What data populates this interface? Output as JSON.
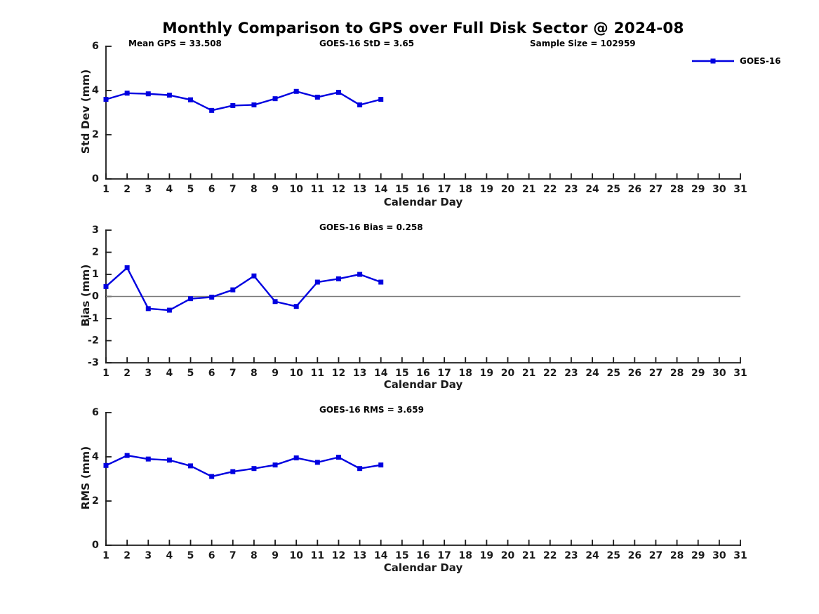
{
  "chart_data": {
    "type": "line",
    "figure_title": "Monthly Comparison to GPS over Full Disk Sector @ 2024-08",
    "legend": {
      "label": "GOES-16",
      "position": "top-right",
      "marker": "square"
    },
    "series_color": "#0000E0",
    "axis_color": "#1a1a1a",
    "zero_line_color": "#7a7a7a",
    "x_ticks": [
      1,
      2,
      3,
      4,
      5,
      6,
      7,
      8,
      9,
      10,
      11,
      12,
      13,
      14,
      15,
      16,
      17,
      18,
      19,
      20,
      21,
      22,
      23,
      24,
      25,
      26,
      27,
      28,
      29,
      30,
      31
    ],
    "subplots": [
      {
        "ylabel": "Std Dev (mm)",
        "xlabel": "Calendar Day",
        "ylim": [
          0,
          6
        ],
        "y_ticks": [
          0,
          2,
          4,
          6
        ],
        "xlim": [
          1,
          31
        ],
        "grid": false,
        "zero_line": false,
        "annotations": [
          "Mean GPS = 33.508",
          "GOES-16 StD = 3.65",
          "Sample Size = 102959"
        ],
        "series": [
          {
            "name": "GOES-16",
            "x": [
              1,
              2,
              3,
              4,
              5,
              6,
              7,
              8,
              9,
              10,
              11,
              12,
              13,
              14
            ],
            "y": [
              3.6,
              3.88,
              3.85,
              3.79,
              3.58,
              3.1,
              3.32,
              3.35,
              3.63,
              3.96,
              3.7,
              3.92,
              3.35,
              3.6
            ]
          }
        ]
      },
      {
        "ylabel": "Bias (mm)",
        "xlabel": "Calendar Day",
        "ylim": [
          -3,
          3
        ],
        "y_ticks": [
          -3,
          -2,
          -1,
          0,
          1,
          2,
          3
        ],
        "xlim": [
          1,
          31
        ],
        "grid": false,
        "zero_line": true,
        "annotations": [
          "GOES-16 Bias = 0.258"
        ],
        "series": [
          {
            "name": "GOES-16",
            "x": [
              1,
              2,
              3,
              4,
              5,
              6,
              7,
              8,
              9,
              10,
              11,
              12,
              13,
              14
            ],
            "y": [
              0.45,
              1.3,
              -0.55,
              -0.62,
              -0.1,
              -0.03,
              0.3,
              0.93,
              -0.23,
              -0.45,
              0.65,
              0.8,
              1.0,
              0.65
            ]
          }
        ]
      },
      {
        "ylabel": "RMS (mm)",
        "xlabel": "Calendar Day",
        "ylim": [
          0,
          6
        ],
        "y_ticks": [
          0,
          2,
          4,
          6
        ],
        "xlim": [
          1,
          31
        ],
        "grid": false,
        "zero_line": false,
        "annotations": [
          "GOES-16 RMS = 3.659"
        ],
        "series": [
          {
            "name": "GOES-16",
            "x": [
              1,
              2,
              3,
              4,
              5,
              6,
              7,
              8,
              9,
              10,
              11,
              12,
              13,
              14
            ],
            "y": [
              3.61,
              4.06,
              3.9,
              3.85,
              3.59,
              3.11,
              3.33,
              3.47,
              3.63,
              3.95,
              3.75,
              3.98,
              3.47,
              3.63
            ]
          }
        ]
      }
    ]
  }
}
